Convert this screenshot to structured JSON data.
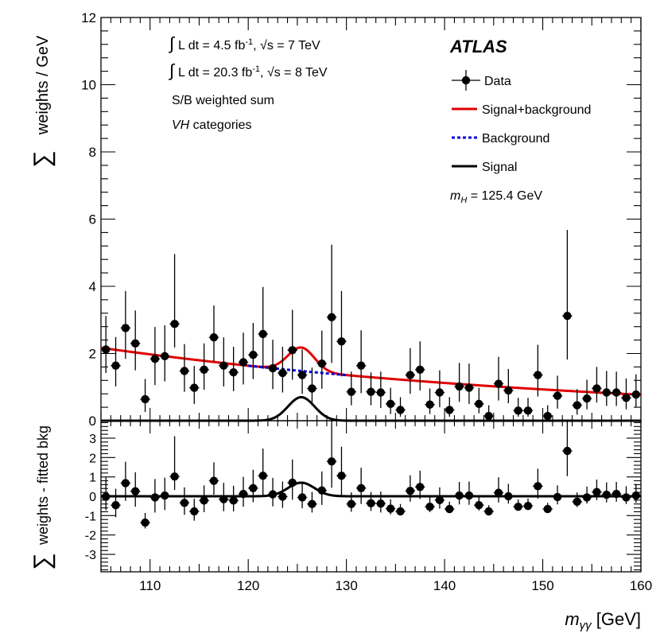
{
  "chart_data": [
    {
      "type": "scatter",
      "name": "main",
      "ylabel_sum": "∑",
      "ylabel": "weights / GeV",
      "xlim": [
        105,
        160
      ],
      "ylim": [
        0,
        12
      ],
      "yticks": [
        0,
        2,
        4,
        6,
        8,
        10,
        12
      ],
      "annotations": {
        "lumi1_text": "L dt = 4.5 fb",
        "lumi1_sup": "-1",
        "lumi1_rest": ", √s = 7 TeV",
        "lumi2_text": "L dt = 20.3 fb",
        "lumi2_sup": "-1",
        "lumi2_rest": ", √s = 8 TeV",
        "sb_text": "S/B weighted sum",
        "cat_italic": "VH",
        "cat_rest": " categories",
        "atlas": "ATLAS",
        "mass_sym": "m",
        "mass_sub": "H",
        "mass_value": " = 125.4 GeV"
      },
      "legend": [
        {
          "label": "Data",
          "style": "marker"
        },
        {
          "label": "Signal+background",
          "style": "red-line",
          "color": "#e00000"
        },
        {
          "label": "Background",
          "style": "blue-dash",
          "color": "#0000dd"
        },
        {
          "label": "Signal",
          "style": "black-line",
          "color": "#000000"
        }
      ],
      "data": {
        "x": [
          105.5,
          106.5,
          107.5,
          108.5,
          109.5,
          110.5,
          111.5,
          112.5,
          113.5,
          114.5,
          115.5,
          116.5,
          117.5,
          118.5,
          119.5,
          120.5,
          121.5,
          122.5,
          123.5,
          124.5,
          125.5,
          126.5,
          127.5,
          128.5,
          129.5,
          130.5,
          131.5,
          132.5,
          133.5,
          134.5,
          135.5,
          136.5,
          137.5,
          138.5,
          139.5,
          140.5,
          141.5,
          142.5,
          143.5,
          144.5,
          145.5,
          146.5,
          147.5,
          148.5,
          149.5,
          150.5,
          151.5,
          152.5,
          153.5,
          154.5,
          155.5,
          156.5,
          157.5,
          158.5,
          159.5
        ],
        "y": [
          2.12,
          1.64,
          2.76,
          2.3,
          0.64,
          1.84,
          1.92,
          2.88,
          1.48,
          0.98,
          1.52,
          2.48,
          1.64,
          1.44,
          1.74,
          1.96,
          2.58,
          1.56,
          1.42,
          2.1,
          1.36,
          0.96,
          1.7,
          3.08,
          2.36,
          0.86,
          1.64,
          0.86,
          0.84,
          0.5,
          0.32,
          1.36,
          1.52,
          0.48,
          0.84,
          0.32,
          1.02,
          0.98,
          0.5,
          0.14,
          1.1,
          0.9,
          0.3,
          0.3,
          1.36,
          0.14,
          0.74,
          3.12,
          0.46,
          0.66,
          0.96,
          0.84,
          0.84,
          0.68,
          0.78
        ],
        "err_lo": [
          0.7,
          0.62,
          0.92,
          0.8,
          0.38,
          0.78,
          0.75,
          0.7,
          0.62,
          0.48,
          0.6,
          0.72,
          0.62,
          0.56,
          0.66,
          0.72,
          1.04,
          0.62,
          0.58,
          0.88,
          0.56,
          0.44,
          0.75,
          1.36,
          1.04,
          0.4,
          0.82,
          0.4,
          0.46,
          0.3,
          0.2,
          0.56,
          0.62,
          0.28,
          0.44,
          0.2,
          0.46,
          0.48,
          0.28,
          0.1,
          0.5,
          0.38,
          0.18,
          0.18,
          0.64,
          0.1,
          0.38,
          1.3,
          0.28,
          0.32,
          0.42,
          0.4,
          0.4,
          0.34,
          0.38
        ],
        "err_hi": [
          1.0,
          0.85,
          1.1,
          0.98,
          0.6,
          0.95,
          0.92,
          2.08,
          0.8,
          0.65,
          0.78,
          0.95,
          0.84,
          0.76,
          0.88,
          0.95,
          1.4,
          0.85,
          0.78,
          1.2,
          0.76,
          0.62,
          0.98,
          2.16,
          1.5,
          0.6,
          1.05,
          0.58,
          0.62,
          0.48,
          0.38,
          0.8,
          0.84,
          0.48,
          0.66,
          0.38,
          0.7,
          0.72,
          0.48,
          0.32,
          0.8,
          0.64,
          0.38,
          0.38,
          0.9,
          0.32,
          0.6,
          2.56,
          0.48,
          0.56,
          0.64,
          0.64,
          0.62,
          0.58,
          0.6
        ]
      },
      "model": {
        "mass": 125.4,
        "signal_peak": 0.7,
        "signal_sigma": 1.35,
        "background_formula": "2.17*exp(-0.0188*(m-105))",
        "background_start": 105,
        "background_end": 160,
        "background_dashed_range": [
          120,
          130
        ]
      }
    },
    {
      "type": "scatter",
      "name": "residual",
      "ylabel_sum": "∑",
      "ylabel": "weights - fitted bkg",
      "xlabel_sym": "m",
      "xlabel_sub": "γγ",
      "xlabel_unit": " [GeV]",
      "xlim": [
        105,
        160
      ],
      "ylim": [
        -3.9,
        3.9
      ],
      "xticks": [
        110,
        120,
        130,
        140,
        150,
        160
      ],
      "yticks": [
        -3,
        -2,
        -1,
        0,
        1,
        2,
        3
      ],
      "data": {
        "x": [
          105.5,
          106.5,
          107.5,
          108.5,
          109.5,
          110.5,
          111.5,
          112.5,
          113.5,
          114.5,
          115.5,
          116.5,
          117.5,
          118.5,
          119.5,
          120.5,
          121.5,
          122.5,
          123.5,
          124.5,
          125.5,
          126.5,
          127.5,
          128.5,
          129.5,
          130.5,
          131.5,
          132.5,
          133.5,
          134.5,
          135.5,
          136.5,
          137.5,
          138.5,
          139.5,
          140.5,
          141.5,
          142.5,
          143.5,
          144.5,
          145.5,
          146.5,
          147.5,
          148.5,
          149.5,
          150.5,
          151.5,
          152.5,
          153.5,
          154.5,
          155.5,
          156.5,
          157.5,
          158.5,
          159.5
        ],
        "y": [
          -0.02,
          -0.46,
          0.68,
          0.26,
          -1.36,
          -0.06,
          0.04,
          1.02,
          -0.34,
          -0.78,
          -0.22,
          0.8,
          -0.15,
          -0.22,
          0.12,
          0.42,
          1.06,
          0.1,
          -0.02,
          0.7,
          -0.06,
          -0.4,
          0.3,
          1.8,
          1.06,
          -0.4,
          0.42,
          -0.36,
          -0.38,
          -0.64,
          -0.78,
          0.28,
          0.48,
          -0.54,
          -0.2,
          -0.66,
          0.04,
          0.04,
          -0.46,
          -0.78,
          0.18,
          0.0,
          -0.54,
          -0.5,
          0.52,
          -0.66,
          -0.04,
          2.34,
          -0.28,
          -0.06,
          0.22,
          0.08,
          0.12,
          -0.06,
          0.04
        ],
        "err_lo": [
          0.7,
          0.62,
          0.92,
          0.8,
          0.3,
          0.78,
          0.75,
          0.7,
          0.62,
          0.48,
          0.6,
          0.72,
          0.62,
          0.56,
          0.66,
          0.72,
          1.04,
          0.62,
          0.58,
          0.88,
          0.56,
          0.44,
          0.75,
          1.36,
          1.04,
          0.4,
          0.82,
          0.4,
          0.46,
          0.3,
          0.2,
          0.56,
          0.62,
          0.28,
          0.44,
          0.2,
          0.46,
          0.48,
          0.28,
          0.1,
          0.5,
          0.38,
          0.18,
          0.18,
          0.64,
          0.1,
          0.38,
          1.3,
          0.28,
          0.32,
          0.42,
          0.4,
          0.4,
          0.34,
          0.38
        ],
        "err_hi": [
          1.0,
          0.85,
          1.1,
          0.98,
          0.5,
          0.95,
          0.92,
          2.08,
          0.8,
          0.65,
          0.78,
          0.95,
          0.84,
          0.76,
          0.88,
          0.95,
          1.4,
          0.85,
          0.78,
          1.2,
          0.76,
          0.62,
          0.98,
          2.16,
          1.5,
          0.6,
          1.05,
          0.58,
          0.62,
          0.48,
          0.38,
          0.8,
          0.84,
          0.48,
          0.66,
          0.38,
          0.7,
          0.72,
          0.48,
          0.32,
          0.8,
          0.64,
          0.38,
          0.38,
          0.9,
          0.32,
          0.6,
          2.56,
          0.48,
          0.56,
          0.64,
          0.64,
          0.62,
          0.58,
          0.6
        ]
      },
      "model": {
        "signal_peak": 0.7,
        "signal_sigma": 1.35,
        "zero_line": 0
      }
    }
  ]
}
